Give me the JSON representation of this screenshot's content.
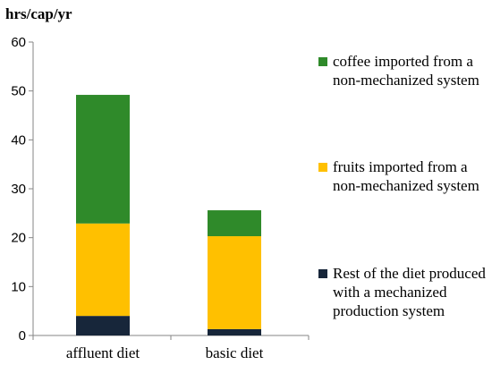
{
  "chart_data": {
    "type": "bar",
    "stacked": true,
    "ylabel": "hrs/cap/yr",
    "ylim": [
      0,
      60
    ],
    "yticks": [
      0,
      10,
      20,
      30,
      40,
      50,
      60
    ],
    "grid": false,
    "legend_position": "right",
    "categories": [
      "affluent diet",
      "basic diet"
    ],
    "series": [
      {
        "name": "Rest of the diet produced with a mechanized production system",
        "color": "#17263a",
        "values": [
          4,
          1.3
        ]
      },
      {
        "name": "fruits imported from a non-mechanized system",
        "color": "#ffc000",
        "values": [
          18.9,
          19
        ]
      },
      {
        "name": "coffee imported from a non-mechanized system",
        "color": "#2f8a2a",
        "values": [
          26.3,
          5.3
        ]
      }
    ],
    "legend_order": [
      2,
      1,
      0
    ]
  }
}
